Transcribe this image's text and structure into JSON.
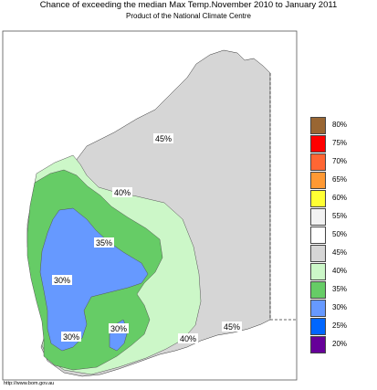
{
  "header": {
    "title": "Chance of exceeding the median Max Temp.November 2010 to January 2011",
    "subtitle": "Product of the National Climate Centre"
  },
  "footer": {
    "credit": "http://www.bom.gov.au"
  },
  "map": {
    "labels": [
      "45%",
      "40%",
      "35%",
      "30%",
      "30%",
      "30%",
      "40%",
      "45%"
    ],
    "colors": {
      "ocean": "#ffffff",
      "p45": "#d6d6d6",
      "p40": "#ccf7c8",
      "p35": "#66cc66",
      "p30": "#6699ff",
      "p50": "#ffffff",
      "border": "#333333"
    }
  },
  "legend": {
    "items": [
      {
        "label": "80%",
        "color": "#996633"
      },
      {
        "label": "75%",
        "color": "#ff0000"
      },
      {
        "label": "70%",
        "color": "#ff6633"
      },
      {
        "label": "65%",
        "color": "#ff9933"
      },
      {
        "label": "60%",
        "color": "#ffff33"
      },
      {
        "label": "55%",
        "color": "#f2f2f2"
      },
      {
        "label": "50%",
        "color": "#ffffff"
      },
      {
        "label": "45%",
        "color": "#d6d6d6"
      },
      {
        "label": "40%",
        "color": "#ccf7c8"
      },
      {
        "label": "35%",
        "color": "#66cc66"
      },
      {
        "label": "30%",
        "color": "#6699ff"
      },
      {
        "label": "25%",
        "color": "#0066ff"
      },
      {
        "label": "20%",
        "color": "#660099"
      }
    ]
  }
}
